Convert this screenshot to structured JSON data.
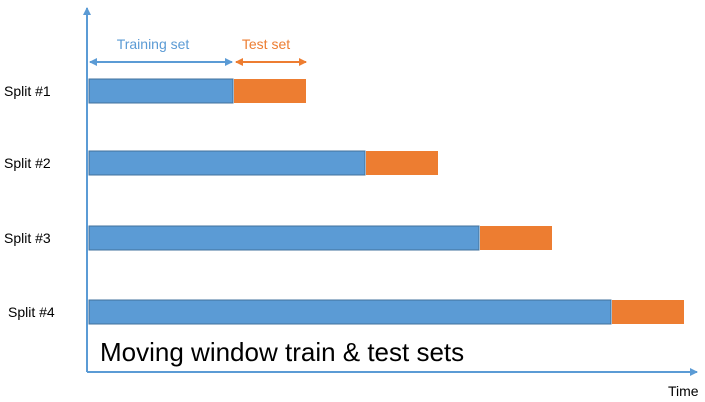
{
  "caption": "Moving window train & test sets",
  "x_axis_label": "Time",
  "legend": {
    "training_label": "Training set",
    "test_label": "Test set"
  },
  "colors": {
    "training": "#5b9bd5",
    "test": "#ed7d31",
    "axis": "#5b9bd5"
  },
  "splits": [
    {
      "label": "Split #1",
      "train_fraction": 0.24,
      "test_fraction": 0.12
    },
    {
      "label": "Split #2",
      "train_fraction": 0.46,
      "test_fraction": 0.12
    },
    {
      "label": "Split #3",
      "train_fraction": 0.65,
      "test_fraction": 0.12
    },
    {
      "label": "Split #4",
      "train_fraction": 0.87,
      "test_fraction": 0.12
    }
  ]
}
